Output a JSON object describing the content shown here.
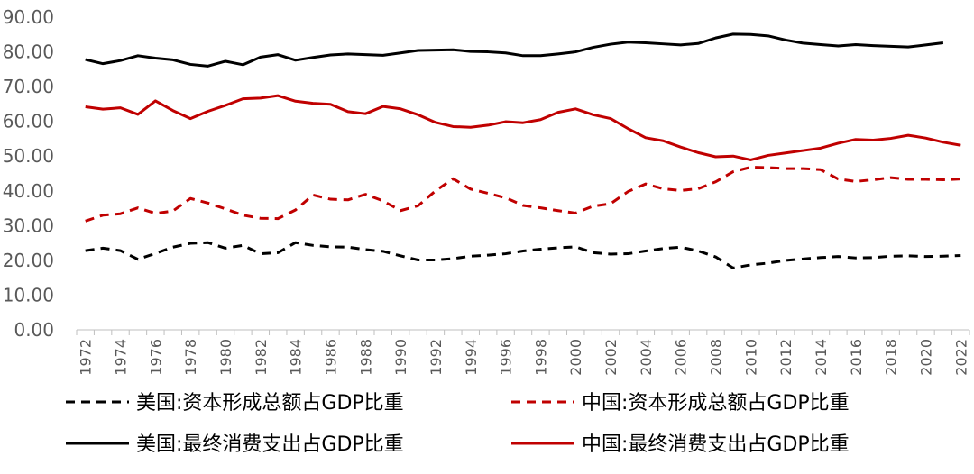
{
  "chart_data": {
    "type": "line",
    "title": "",
    "xlabel": "",
    "ylabel": "",
    "ylim": [
      0,
      90
    ],
    "y_ticks": [
      "0.00",
      "10.00",
      "20.00",
      "30.00",
      "40.00",
      "50.00",
      "60.00",
      "70.00",
      "80.00",
      "90.00"
    ],
    "x_tick_labels": [
      "1972",
      "1974",
      "1976",
      "1978",
      "1980",
      "1982",
      "1984",
      "1986",
      "1988",
      "1990",
      "1992",
      "1994",
      "1996",
      "1998",
      "2000",
      "2002",
      "2004",
      "2006",
      "2008",
      "2010",
      "2012",
      "2014",
      "2016",
      "2018",
      "2020",
      "2022"
    ],
    "grid": false,
    "legend_position": "bottom",
    "x": [
      1972,
      1973,
      1974,
      1975,
      1976,
      1977,
      1978,
      1979,
      1980,
      1981,
      1982,
      1983,
      1984,
      1985,
      1986,
      1987,
      1988,
      1989,
      1990,
      1991,
      1992,
      1993,
      1994,
      1995,
      1996,
      1997,
      1998,
      1999,
      2000,
      2001,
      2002,
      2003,
      2004,
      2005,
      2006,
      2007,
      2008,
      2009,
      2010,
      2011,
      2012,
      2013,
      2014,
      2015,
      2016,
      2017,
      2018,
      2019,
      2020,
      2021,
      2022
    ],
    "series": [
      {
        "name": "美国:资本形成总额占GDP比重",
        "color": "#000000",
        "dash": "dashed",
        "values": [
          22.8,
          23.5,
          22.8,
          20.3,
          22.0,
          23.8,
          24.9,
          25.1,
          23.5,
          24.3,
          21.9,
          22.2,
          25.1,
          24.3,
          23.9,
          23.8,
          23.1,
          22.6,
          21.3,
          20.1,
          20.1,
          20.5,
          21.2,
          21.5,
          21.9,
          22.7,
          23.2,
          23.6,
          23.9,
          22.2,
          21.8,
          21.9,
          22.7,
          23.4,
          23.8,
          22.7,
          21.0,
          17.8,
          18.7,
          19.2,
          20.0,
          20.4,
          20.8,
          21.1,
          20.7,
          20.8,
          21.2,
          21.3,
          21.1,
          21.2,
          21.4
        ]
      },
      {
        "name": "中国:资本形成总额占GDP比重",
        "color": "#C00000",
        "dash": "dashed",
        "values": [
          31.3,
          33.0,
          33.4,
          35.1,
          33.5,
          34.2,
          37.8,
          36.5,
          34.8,
          33.0,
          32.1,
          32.0,
          34.5,
          38.8,
          37.6,
          37.4,
          39.0,
          37.1,
          34.3,
          35.7,
          40.0,
          43.5,
          40.5,
          39.3,
          38.0,
          35.8,
          35.1,
          34.3,
          33.6,
          35.6,
          36.3,
          39.8,
          42.0,
          40.6,
          40.1,
          40.6,
          42.6,
          45.5,
          46.8,
          46.7,
          46.4,
          46.4,
          46.1,
          43.4,
          42.7,
          43.2,
          43.8,
          43.3,
          43.3,
          43.2,
          43.4
        ]
      },
      {
        "name": "美国:最终消费支出占GDP比重",
        "color": "#000000",
        "dash": "solid",
        "values": [
          77.8,
          76.6,
          77.5,
          78.9,
          78.2,
          77.7,
          76.4,
          75.9,
          77.3,
          76.3,
          78.5,
          79.2,
          77.6,
          78.4,
          79.1,
          79.4,
          79.2,
          79.0,
          79.7,
          80.4,
          80.5,
          80.6,
          80.1,
          80.0,
          79.7,
          78.9,
          78.9,
          79.4,
          80.0,
          81.3,
          82.2,
          82.8,
          82.6,
          82.3,
          82.0,
          82.4,
          84.0,
          85.1,
          85.0,
          84.6,
          83.4,
          82.5,
          82.1,
          81.7,
          82.1,
          81.8,
          81.6,
          81.4,
          82.0,
          82.6,
          null
        ]
      },
      {
        "name": "中国:最终消费支出占GDP比重",
        "color": "#C00000",
        "dash": "solid",
        "values": [
          64.2,
          63.5,
          63.9,
          62.0,
          65.9,
          63.1,
          60.8,
          62.9,
          64.6,
          66.5,
          66.7,
          67.4,
          65.8,
          65.2,
          64.9,
          62.8,
          62.2,
          64.3,
          63.6,
          61.9,
          59.7,
          58.5,
          58.3,
          58.9,
          59.9,
          59.6,
          60.5,
          62.6,
          63.6,
          61.9,
          60.8,
          57.9,
          55.3,
          54.4,
          52.6,
          51.0,
          49.8,
          50.0,
          48.9,
          50.2,
          50.9,
          51.6,
          52.3,
          53.7,
          54.8,
          54.6,
          55.1,
          56.0,
          55.2,
          54.0,
          53.1
        ]
      }
    ]
  }
}
